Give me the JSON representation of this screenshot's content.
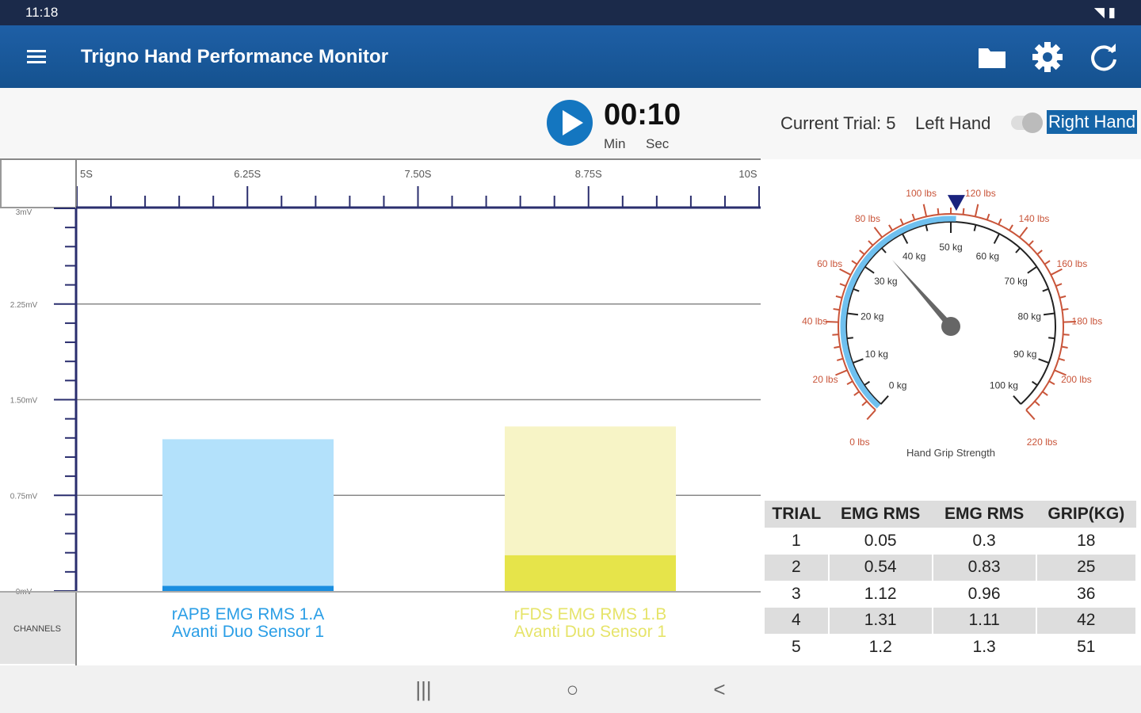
{
  "status_bar": {
    "time": "11:18"
  },
  "app": {
    "title": "Trigno Hand Performance Monitor"
  },
  "timer": {
    "value": "00:10",
    "min_label": "Min",
    "sec_label": "Sec"
  },
  "trial": {
    "current": "Current Trial: 5",
    "left_hand": "Left Hand",
    "right_hand": "Right Hand",
    "right_selected": true
  },
  "chart_data": {
    "type": "bar",
    "x_ticks": [
      "5S",
      "6.25S",
      "7.50S",
      "8.75S",
      "10S"
    ],
    "y_ticks": [
      "0mV",
      "0.75mV",
      "1.50mV",
      "2.25mV",
      "3mV"
    ],
    "ylim": [
      0,
      3
    ],
    "channels_label": "CHANNELS",
    "series": [
      {
        "name": "rAPB EMG RMS 1.A",
        "sensor": "Avanti Duo Sensor 1",
        "peak": 1.19,
        "current": 0.04,
        "color_light": "#b3e1fb",
        "color": "#1a8ee0",
        "label_color": "#2a9ee6"
      },
      {
        "name": "rFDS EMG RMS 1.B",
        "sensor": "Avanti Duo Sensor 1",
        "peak": 1.29,
        "current": 0.28,
        "color_light": "#f7f4c6",
        "color": "#e6e44a",
        "label_color": "#e6e46a"
      }
    ]
  },
  "gauge": {
    "title": "Hand Grip Strength",
    "value_kg": 35,
    "max_kg": 51,
    "kg_labels": [
      "0 kg",
      "10 kg",
      "20 kg",
      "30 kg",
      "40 kg",
      "50 kg",
      "60 kg",
      "70 kg",
      "80 kg",
      "90 kg",
      "100 kg"
    ],
    "lbs_labels": [
      "0 lbs",
      "20 lbs",
      "40 lbs",
      "60 lbs",
      "80 lbs",
      "100 lbs",
      "120 lbs",
      "140 lbs",
      "160 lbs",
      "180 lbs",
      "200 lbs",
      "220 lbs"
    ]
  },
  "table": {
    "headers": [
      "TRIAL",
      "EMG RMS",
      "EMG RMS",
      "GRIP(KG)"
    ],
    "rows": [
      [
        "1",
        "0.05",
        "0.3",
        "18"
      ],
      [
        "2",
        "0.54",
        "0.83",
        "25"
      ],
      [
        "3",
        "1.12",
        "0.96",
        "36"
      ],
      [
        "4",
        "1.31",
        "1.11",
        "42"
      ],
      [
        "5",
        "1.2",
        "1.3",
        "51"
      ]
    ]
  },
  "nav": {
    "recent": "|||",
    "home": "○",
    "back": "<"
  }
}
